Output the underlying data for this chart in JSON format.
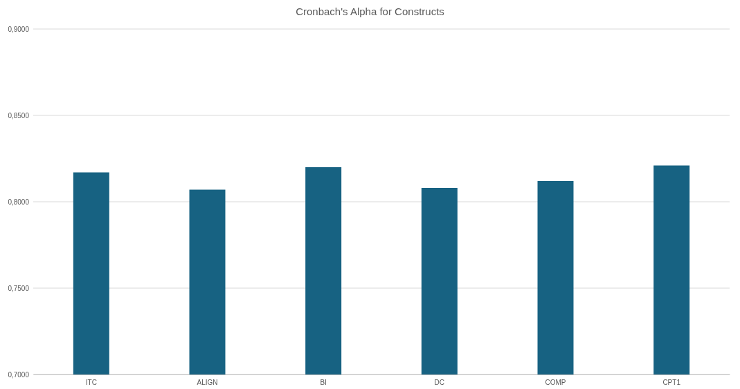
{
  "chart_data": {
    "type": "bar",
    "title": "Cronbach's Alpha for Constructs",
    "categories": [
      "ITC",
      "ALIGN",
      "BI",
      "DC",
      "COMP",
      "CPT1"
    ],
    "values": [
      0.817,
      0.807,
      0.82,
      0.808,
      0.812,
      0.821
    ],
    "color": "#176282",
    "ylim": [
      0.7,
      0.9
    ],
    "yticks": [
      {
        "value": 0.7,
        "label": "0,7000"
      },
      {
        "value": 0.75,
        "label": "0,7500"
      },
      {
        "value": 0.8,
        "label": "0,8000"
      },
      {
        "value": 0.85,
        "label": "0,8500"
      },
      {
        "value": 0.9,
        "label": "0,9000"
      }
    ],
    "grid": "y"
  }
}
